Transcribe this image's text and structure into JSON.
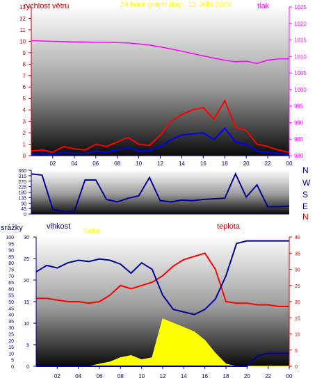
{
  "header": {
    "wind_label": "rychlost větru",
    "title": "24 hour graph day : 12 Julu 2024",
    "pressure_label": "tlak"
  },
  "middle": {
    "compass": [
      "N",
      "W",
      "S",
      "E",
      "N"
    ]
  },
  "bottom_header": {
    "rain_label": "srážky",
    "humidity_label": "vlhkost",
    "solar_label": "Solar",
    "temp_label": "teplota"
  },
  "colors": {
    "wind": "#ff0000",
    "gust": "#0000ff",
    "pressure": "#ff00ff",
    "direction": "#000099",
    "humidity": "#000099",
    "temperature": "#ff0000",
    "solar": "#ffff00",
    "rain": "#000099",
    "title": "#ffff00",
    "axis_red": "#cc0000",
    "axis_magenta": "#ff00ff",
    "axis_navy": "#000080"
  },
  "chart_data": [
    {
      "type": "line",
      "id": "wind-pressure",
      "x_ticks": [
        "02",
        "04",
        "06",
        "08",
        "10",
        "12",
        "14",
        "16",
        "18",
        "20",
        "22",
        "00"
      ],
      "x_hours": [
        0,
        1,
        2,
        3,
        4,
        5,
        6,
        7,
        8,
        9,
        10,
        11,
        12,
        13,
        14,
        15,
        16,
        17,
        18,
        19,
        20,
        21,
        22,
        23,
        24
      ],
      "left_axis": {
        "label": "rychlost větru",
        "ticks": [
          0,
          1,
          2,
          3,
          4,
          5,
          6,
          7,
          8,
          9,
          10,
          11,
          12,
          13
        ],
        "ylim": [
          0,
          13
        ]
      },
      "right_axis": {
        "label": "tlak",
        "ticks": [
          980,
          985,
          990,
          995,
          1000,
          1005,
          1010,
          1015,
          1020,
          1025
        ],
        "ylim": [
          980,
          1025
        ]
      },
      "series": [
        {
          "axis": "left",
          "values": [
            0.4,
            0.5,
            0.3,
            0.8,
            0.6,
            0.5,
            1.0,
            0.8,
            1.2,
            1.6,
            1.0,
            0.9,
            1.8,
            3.0,
            3.6,
            4.0,
            4.2,
            3.2,
            4.8,
            2.5,
            2.2,
            1.0,
            0.8,
            0.5,
            0.3
          ]
        },
        {
          "axis": "left",
          "values": [
            0.1,
            0.2,
            0.1,
            0.3,
            0.2,
            0.2,
            0.4,
            0.3,
            0.5,
            0.7,
            0.4,
            0.4,
            0.8,
            1.4,
            1.8,
            1.9,
            2.0,
            1.4,
            2.4,
            1.2,
            1.0,
            0.4,
            0.3,
            0.2,
            0.1
          ]
        },
        {
          "axis": "right",
          "values": [
            1014.8,
            1014.7,
            1014.6,
            1014.5,
            1014.4,
            1014.4,
            1014.3,
            1014.3,
            1014.2,
            1014.1,
            1013.8,
            1013.5,
            1012.9,
            1012.3,
            1011.6,
            1010.9,
            1010.2,
            1009.5,
            1008.9,
            1008.4,
            1008.6,
            1007.9,
            1008.9,
            1009.3,
            1009.3
          ]
        }
      ]
    },
    {
      "type": "line",
      "id": "wind-direction",
      "x_hours": [
        0,
        1,
        2,
        3,
        4,
        5,
        6,
        7,
        8,
        9,
        10,
        11,
        12,
        13,
        14,
        15,
        16,
        17,
        18,
        19,
        20,
        21,
        22,
        23,
        24
      ],
      "left_axis": {
        "ticks": [
          0,
          45,
          90,
          135,
          180,
          225,
          270,
          315,
          360
        ],
        "ylim": [
          0,
          360
        ]
      },
      "series": [
        {
          "values": [
            330,
            320,
            40,
            20,
            20,
            280,
            280,
            120,
            100,
            130,
            150,
            300,
            110,
            100,
            115,
            110,
            120,
            125,
            130,
            330,
            140,
            240,
            60,
            60,
            65
          ]
        }
      ]
    },
    {
      "type": "line",
      "id": "climate",
      "x_ticks": [
        "02",
        "04",
        "06",
        "08",
        "10",
        "12",
        "14",
        "16",
        "18",
        "20",
        "22",
        "00"
      ],
      "x_hours": [
        0,
        1,
        2,
        3,
        4,
        5,
        6,
        7,
        8,
        9,
        10,
        11,
        12,
        13,
        14,
        15,
        16,
        17,
        18,
        19,
        20,
        21,
        22,
        23,
        24
      ],
      "axes": {
        "rain": {
          "label": "srážky",
          "ticks": [
            0,
            5,
            10,
            15,
            20,
            25,
            30,
            35,
            40,
            45,
            50,
            55,
            60,
            65,
            70,
            75,
            80,
            85,
            90,
            95,
            100
          ],
          "ylim": [
            0,
            100
          ]
        },
        "humidity": {
          "label": "vlhkost",
          "ticks": [
            0,
            5,
            10,
            15,
            20,
            25,
            30
          ],
          "ylim": [
            0,
            30
          ]
        },
        "temperature": {
          "label": "teplota",
          "ticks": [
            0,
            5,
            10,
            15,
            20,
            25,
            30,
            35,
            40
          ],
          "ylim": [
            0,
            40
          ]
        }
      },
      "series": [
        {
          "axis": "rain",
          "values": [
            73,
            78,
            76,
            80,
            82,
            81,
            83,
            82,
            79,
            72,
            80,
            75,
            55,
            44,
            42,
            40,
            44,
            52,
            70,
            95,
            97,
            97,
            97,
            97,
            97
          ]
        },
        {
          "axis": "temperature",
          "values": [
            21,
            21,
            20.5,
            20,
            20,
            19.5,
            20,
            22,
            25,
            24,
            25,
            26,
            28,
            31,
            33,
            34,
            35,
            30,
            20,
            19.5,
            19.5,
            19,
            19,
            18.5,
            18.5
          ]
        },
        {
          "axis": "humidity",
          "values": [
            0,
            0,
            0,
            0,
            0,
            0,
            0.5,
            1,
            2,
            2.5,
            1.5,
            2,
            11,
            10,
            9,
            8,
            6,
            3,
            0.5,
            0,
            0,
            0,
            0,
            0,
            0
          ]
        },
        {
          "axis": "rain",
          "values": [
            0,
            0,
            0,
            0,
            0,
            0,
            0,
            0,
            0,
            0,
            0,
            0,
            0,
            0,
            0,
            0,
            0,
            0,
            0,
            0,
            0,
            8,
            10,
            10,
            10
          ]
        }
      ]
    }
  ]
}
